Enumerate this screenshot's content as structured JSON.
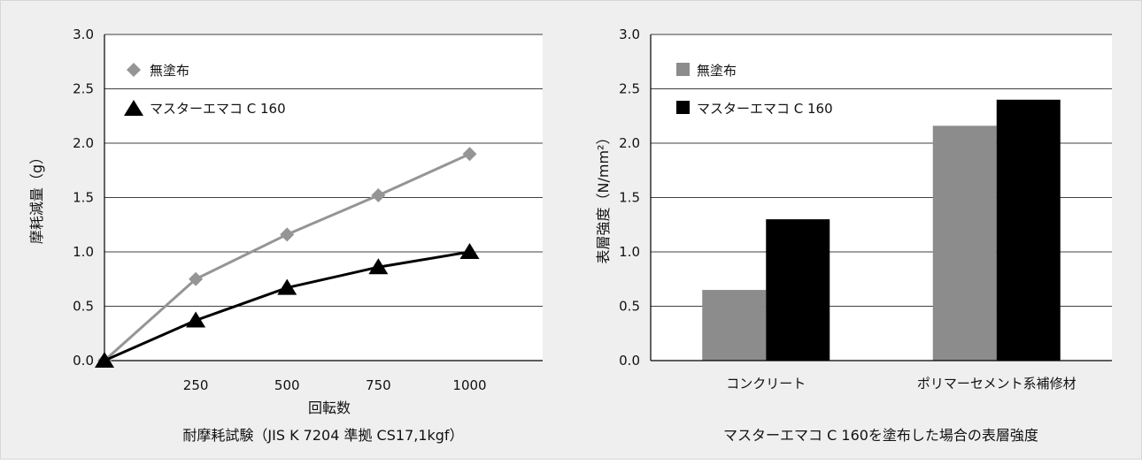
{
  "chart_data": [
    {
      "type": "line",
      "caption": "耐摩耗試験（JIS K 7204 準拠 CS17,1kgf）",
      "xlabel": "回転数",
      "ylabel": "摩耗減量（g）",
      "x": [
        0,
        250,
        500,
        750,
        1000
      ],
      "x_tick_labels": [
        "250",
        "500",
        "750",
        "1000"
      ],
      "xlim": [
        0,
        1200
      ],
      "ylim": [
        0,
        3.0
      ],
      "y_ticks": [
        "0.0",
        "0.5",
        "1.0",
        "1.5",
        "2.0",
        "2.5",
        "3.0"
      ],
      "grid": true,
      "legend_position": "top-left",
      "series": [
        {
          "name": "無塗布",
          "marker": "diamond",
          "color": "#959595",
          "values": [
            0,
            0.75,
            1.16,
            1.52,
            1.9
          ]
        },
        {
          "name": "マスターエマコ C 160",
          "marker": "triangle",
          "color": "#000000",
          "values": [
            0,
            0.37,
            0.67,
            0.86,
            1.0
          ]
        }
      ]
    },
    {
      "type": "bar",
      "caption": "マスターエマコ C 160を塗布した場合の表層強度",
      "xlabel": "",
      "ylabel": "表層強度（N/mm²）",
      "categories": [
        "コンクリート",
        "ポリマーセメント系補修材"
      ],
      "ylim": [
        0,
        3.0
      ],
      "y_ticks": [
        "0.0",
        "0.5",
        "1.0",
        "1.5",
        "2.0",
        "2.5",
        "3.0"
      ],
      "grid": true,
      "legend_position": "top-left",
      "series": [
        {
          "name": "無塗布",
          "color": "#8c8c8c",
          "values": [
            0.65,
            2.16
          ]
        },
        {
          "name": "マスターエマコ C 160",
          "color": "#000000",
          "values": [
            1.3,
            2.4
          ]
        }
      ]
    }
  ]
}
